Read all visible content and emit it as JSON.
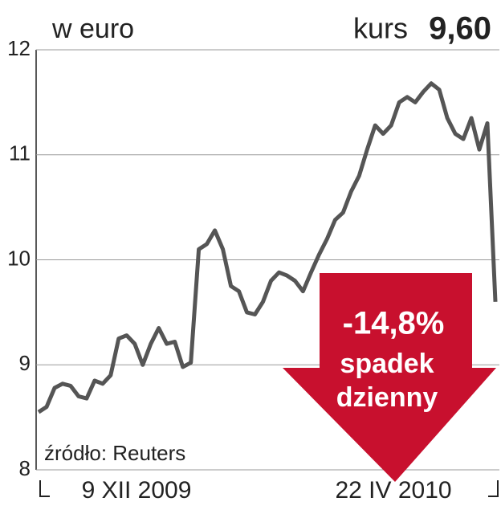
{
  "chart_data": {
    "type": "line",
    "title": "w euro",
    "header_label": "kurs",
    "header_value": "9,60",
    "source": "źródło: Reuters",
    "annotation_change": "-14,8%",
    "annotation_line1": "spadek",
    "annotation_line2": "dzienny",
    "color": "#555555",
    "grid": true,
    "ylim": [
      8,
      12
    ],
    "yticks": [
      8,
      9,
      10,
      11,
      12
    ],
    "categories": [
      "9 XII 2009",
      null,
      null,
      null,
      null,
      null,
      null,
      null,
      null,
      null,
      null,
      null,
      null,
      null,
      null,
      null,
      null,
      null,
      null,
      null,
      null,
      null,
      null,
      null,
      null,
      null,
      null,
      null,
      null,
      null,
      null,
      null,
      null,
      null,
      null,
      null,
      null,
      null,
      null,
      null,
      null,
      null,
      null,
      null,
      null,
      null,
      null,
      null,
      null,
      null,
      null,
      null,
      null,
      null,
      null,
      null,
      null,
      "22 IV 2010"
    ],
    "values": [
      8.55,
      8.6,
      8.78,
      8.82,
      8.8,
      8.7,
      8.68,
      8.85,
      8.82,
      8.9,
      9.25,
      9.28,
      9.2,
      9.0,
      9.2,
      9.35,
      9.2,
      9.22,
      8.98,
      9.02,
      10.1,
      10.15,
      10.28,
      10.1,
      9.75,
      9.7,
      9.5,
      9.48,
      9.6,
      9.8,
      9.88,
      9.85,
      9.8,
      9.7,
      9.88,
      10.05,
      10.2,
      10.38,
      10.45,
      10.65,
      10.8,
      11.05,
      11.28,
      11.2,
      11.28,
      11.5,
      11.55,
      11.5,
      11.6,
      11.68,
      11.62,
      11.35,
      11.2,
      11.15,
      11.35,
      11.05,
      11.3,
      9.6
    ]
  }
}
